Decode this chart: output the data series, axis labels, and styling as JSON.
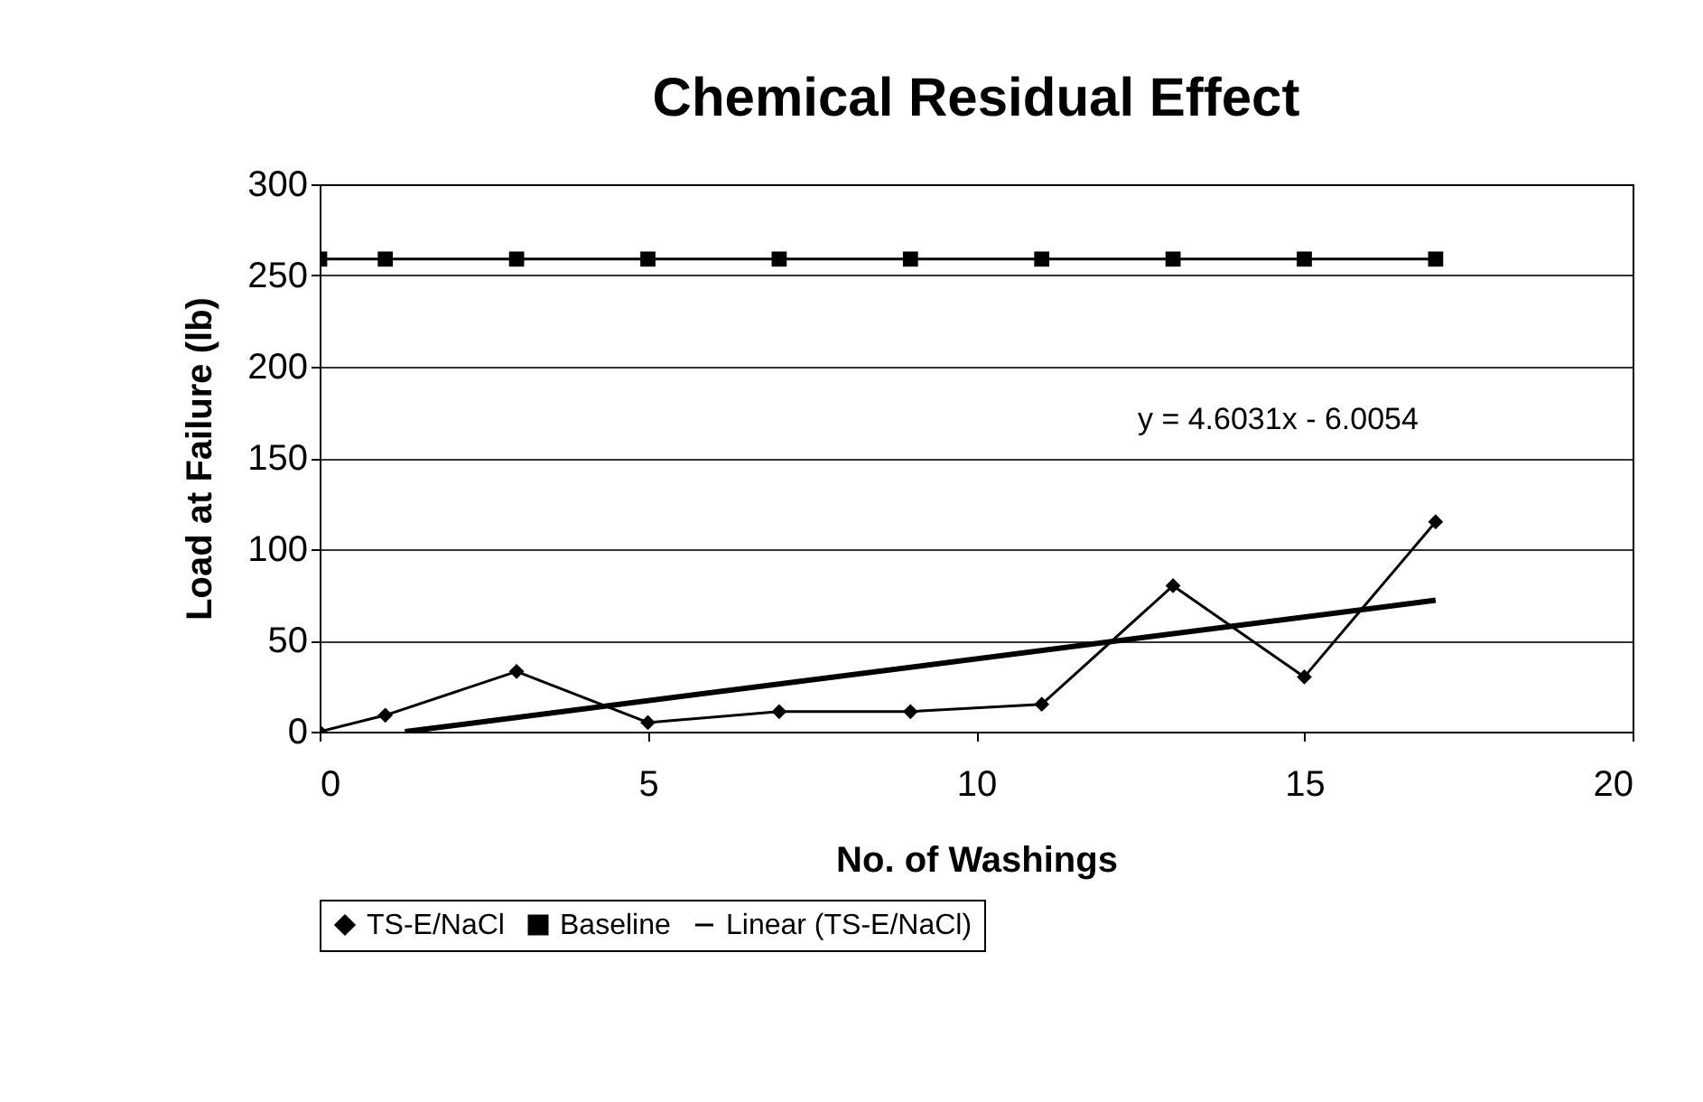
{
  "chart_data": {
    "type": "line",
    "title": "Chemical Residual Effect",
    "xlabel": "No. of Washings",
    "ylabel": "Load at Failure (lb)",
    "xlim": [
      0,
      20
    ],
    "xticks": [
      0,
      5,
      10,
      15,
      20
    ],
    "ylim": [
      0,
      300
    ],
    "yticks": [
      0,
      50,
      100,
      150,
      200,
      250,
      300
    ],
    "grid": "y",
    "legend": "bottom",
    "annotations": [
      "y = 4.6031x - 6.0054"
    ],
    "series": [
      {
        "name": "TS-E/NaCl",
        "color": "#000000",
        "marker": "diamond",
        "x": [
          0,
          1,
          3,
          5,
          7,
          9,
          11,
          13,
          15,
          17
        ],
        "values": [
          0,
          9,
          33,
          5,
          11,
          11,
          15,
          80,
          30,
          115
        ]
      },
      {
        "name": "Baseline",
        "color": "#000000",
        "marker": "square",
        "x": [
          0,
          1,
          3,
          5,
          7,
          9,
          11,
          13,
          15,
          17
        ],
        "values": [
          259,
          259,
          259,
          259,
          259,
          259,
          259,
          259,
          259,
          259
        ]
      },
      {
        "name": "Linear (TS-E/NaCl)",
        "color": "#000000",
        "marker": "none",
        "x": [
          1.3,
          17
        ],
        "values": [
          0,
          72
        ]
      }
    ]
  }
}
